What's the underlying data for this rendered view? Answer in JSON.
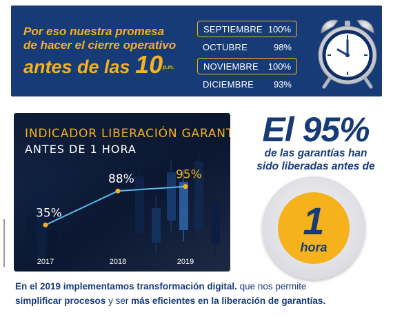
{
  "banner": {
    "promise_line1": "Por eso nuestra promesa",
    "promise_line2": "de hacer el cierre operativo",
    "promise_line3": "antes de las",
    "promise_hour": "10",
    "promise_suffix": "p.m.",
    "months": [
      {
        "name": "SEPTIEMBRE",
        "value": "100%",
        "highlighted": true
      },
      {
        "name": "OCTUBRE",
        "value": "98%",
        "highlighted": false
      },
      {
        "name": "NOVIEMBRE",
        "value": "100%",
        "highlighted": true
      },
      {
        "name": "DICIEMBRE",
        "value": "93%",
        "highlighted": false
      }
    ],
    "icon": "alarm-clock-icon"
  },
  "chart_data": {
    "type": "line",
    "title": "INDICADOR  LIBERACIÓN GARANTÍAS",
    "subtitle": "ANTES DE 1 HORA",
    "x": [
      "2017",
      "2018",
      "2019"
    ],
    "values": [
      35,
      88,
      95
    ],
    "data_labels": [
      "35%",
      "88%",
      "95%"
    ],
    "ylim": [
      0,
      100
    ],
    "xlabel": "",
    "ylabel": "",
    "grid": false,
    "last_label_highlighted": true
  },
  "highlight": {
    "big_text": "El 95%",
    "description_line1": "de las garantías han",
    "description_line2": "sido liberadas antes de",
    "badge_number": "1",
    "badge_unit": "hora"
  },
  "footer": {
    "bold1": "En el 2019 implementamos transformación digital.",
    "normal1": "  que nos permite",
    "bold2": "simplificar procesos",
    "normal2": " y ser ",
    "bold3": "más eficientes en la liberación de garantías."
  },
  "colors": {
    "navy": "#173b77",
    "gold": "#f5b21c",
    "line": "#5cb8ec",
    "panel": "#0c1830"
  }
}
